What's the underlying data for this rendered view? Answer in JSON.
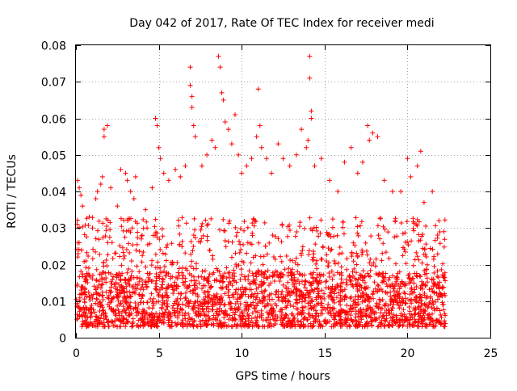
{
  "chart_data": {
    "type": "scatter",
    "title": "Day 042 of 2017, Rate Of TEC Index for receiver medi",
    "xlabel": "GPS time / hours",
    "ylabel": "ROTI / TECUs",
    "xlim": [
      0,
      25
    ],
    "ylim": [
      0,
      0.08
    ],
    "x_ticks": [
      0,
      5,
      10,
      15,
      20,
      25
    ],
    "x_tick_labels": [
      "0",
      "5",
      "10",
      "15",
      "20",
      "25"
    ],
    "y_ticks": [
      0,
      0.01,
      0.02,
      0.03,
      0.04,
      0.05,
      0.06,
      0.07,
      0.08
    ],
    "y_tick_labels": [
      "0",
      "0.01",
      "0.02",
      "0.03",
      "0.04",
      "0.05",
      "0.06",
      "0.07",
      "0.08"
    ],
    "grid": true,
    "marker": "+",
    "color": "#ff0000",
    "series": [
      {
        "x_range": [
          0.0,
          22.3
        ],
        "points": [
          [
            0.1,
            0.043
          ],
          [
            0.2,
            0.041
          ],
          [
            0.3,
            0.039
          ],
          [
            0.4,
            0.036
          ],
          [
            0.8,
            0.033
          ],
          [
            1.0,
            0.03
          ],
          [
            1.2,
            0.038
          ],
          [
            1.3,
            0.04
          ],
          [
            1.5,
            0.042
          ],
          [
            1.6,
            0.044
          ],
          [
            1.7,
            0.057
          ],
          [
            1.7,
            0.055
          ],
          [
            1.9,
            0.058
          ],
          [
            2.1,
            0.041
          ],
          [
            2.5,
            0.036
          ],
          [
            2.7,
            0.046
          ],
          [
            3.0,
            0.045
          ],
          [
            3.1,
            0.043
          ],
          [
            3.3,
            0.04
          ],
          [
            3.5,
            0.038
          ],
          [
            3.6,
            0.044
          ],
          [
            4.2,
            0.035
          ],
          [
            4.6,
            0.041
          ],
          [
            4.8,
            0.06
          ],
          [
            4.9,
            0.058
          ],
          [
            5.0,
            0.052
          ],
          [
            5.1,
            0.049
          ],
          [
            5.3,
            0.045
          ],
          [
            5.6,
            0.043
          ],
          [
            6.0,
            0.046
          ],
          [
            6.3,
            0.044
          ],
          [
            6.6,
            0.047
          ],
          [
            6.9,
            0.074
          ],
          [
            6.9,
            0.069
          ],
          [
            7.0,
            0.066
          ],
          [
            7.0,
            0.063
          ],
          [
            7.1,
            0.058
          ],
          [
            7.2,
            0.055
          ],
          [
            7.6,
            0.047
          ],
          [
            7.9,
            0.05
          ],
          [
            8.2,
            0.054
          ],
          [
            8.4,
            0.052
          ],
          [
            8.6,
            0.077
          ],
          [
            8.7,
            0.074
          ],
          [
            8.8,
            0.067
          ],
          [
            8.9,
            0.065
          ],
          [
            9.0,
            0.059
          ],
          [
            9.2,
            0.057
          ],
          [
            9.4,
            0.053
          ],
          [
            9.6,
            0.061
          ],
          [
            9.8,
            0.05
          ],
          [
            10.0,
            0.045
          ],
          [
            10.3,
            0.047
          ],
          [
            10.6,
            0.049
          ],
          [
            10.9,
            0.055
          ],
          [
            11.0,
            0.068
          ],
          [
            11.1,
            0.058
          ],
          [
            11.2,
            0.052
          ],
          [
            11.5,
            0.049
          ],
          [
            11.8,
            0.045
          ],
          [
            12.2,
            0.053
          ],
          [
            12.5,
            0.049
          ],
          [
            12.9,
            0.047
          ],
          [
            13.3,
            0.05
          ],
          [
            13.6,
            0.057
          ],
          [
            13.9,
            0.052
          ],
          [
            14.0,
            0.054
          ],
          [
            14.1,
            0.077
          ],
          [
            14.1,
            0.071
          ],
          [
            14.2,
            0.062
          ],
          [
            14.2,
            0.06
          ],
          [
            14.4,
            0.047
          ],
          [
            14.8,
            0.049
          ],
          [
            15.3,
            0.043
          ],
          [
            15.8,
            0.04
          ],
          [
            16.2,
            0.048
          ],
          [
            16.6,
            0.052
          ],
          [
            17.0,
            0.045
          ],
          [
            17.3,
            0.048
          ],
          [
            17.6,
            0.058
          ],
          [
            17.7,
            0.054
          ],
          [
            17.9,
            0.056
          ],
          [
            18.2,
            0.055
          ],
          [
            18.6,
            0.043
          ],
          [
            19.1,
            0.04
          ],
          [
            19.6,
            0.04
          ],
          [
            20.0,
            0.049
          ],
          [
            20.2,
            0.044
          ],
          [
            20.6,
            0.047
          ],
          [
            20.8,
            0.051
          ],
          [
            21.0,
            0.037
          ],
          [
            21.5,
            0.04
          ],
          [
            21.9,
            0.032
          ],
          [
            22.2,
            0.029
          ]
        ],
        "dense_band": {
          "description_values": "bulk of samples",
          "y_min": 0.003,
          "y_max": 0.033,
          "y_median": 0.012
        }
      }
    ]
  }
}
